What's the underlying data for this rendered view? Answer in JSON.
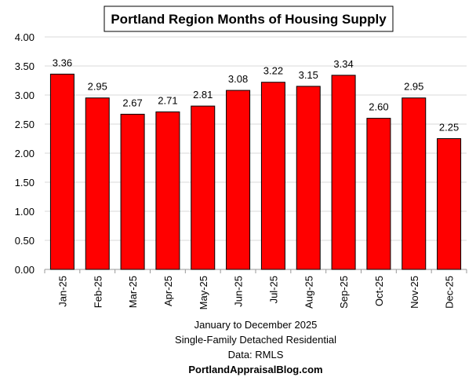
{
  "chart_data": {
    "type": "bar",
    "title": "Portland Region Months of Housing Supply",
    "categories": [
      "Jan-25",
      "Feb-25",
      "Mar-25",
      "Apr-25",
      "May-25",
      "Jun-25",
      "Jul-25",
      "Aug-25",
      "Sep-25",
      "Oct-25",
      "Nov-25",
      "Dec-25"
    ],
    "values": [
      3.36,
      2.95,
      2.67,
      2.71,
      2.81,
      3.08,
      3.22,
      3.15,
      3.34,
      2.6,
      2.95,
      2.25
    ],
    "data_labels": [
      "3.36",
      "2.95",
      "2.67",
      "2.71",
      "2.81",
      "3.08",
      "3.22",
      "3.15",
      "3.34",
      "2.60",
      "2.95",
      "2.25"
    ],
    "ylim": [
      0,
      4
    ],
    "yticks": [
      "0.00",
      "0.50",
      "1.00",
      "1.50",
      "2.00",
      "2.50",
      "3.00",
      "3.50",
      "4.00"
    ],
    "grid": true,
    "bar_color": "#ff0000",
    "xlabel": "",
    "ylabel": "",
    "notes": [
      "January to December 2025",
      "Single-Family Detached Residential",
      "Data: RMLS"
    ],
    "source_site": "PortlandAppraisalBlog.com"
  }
}
